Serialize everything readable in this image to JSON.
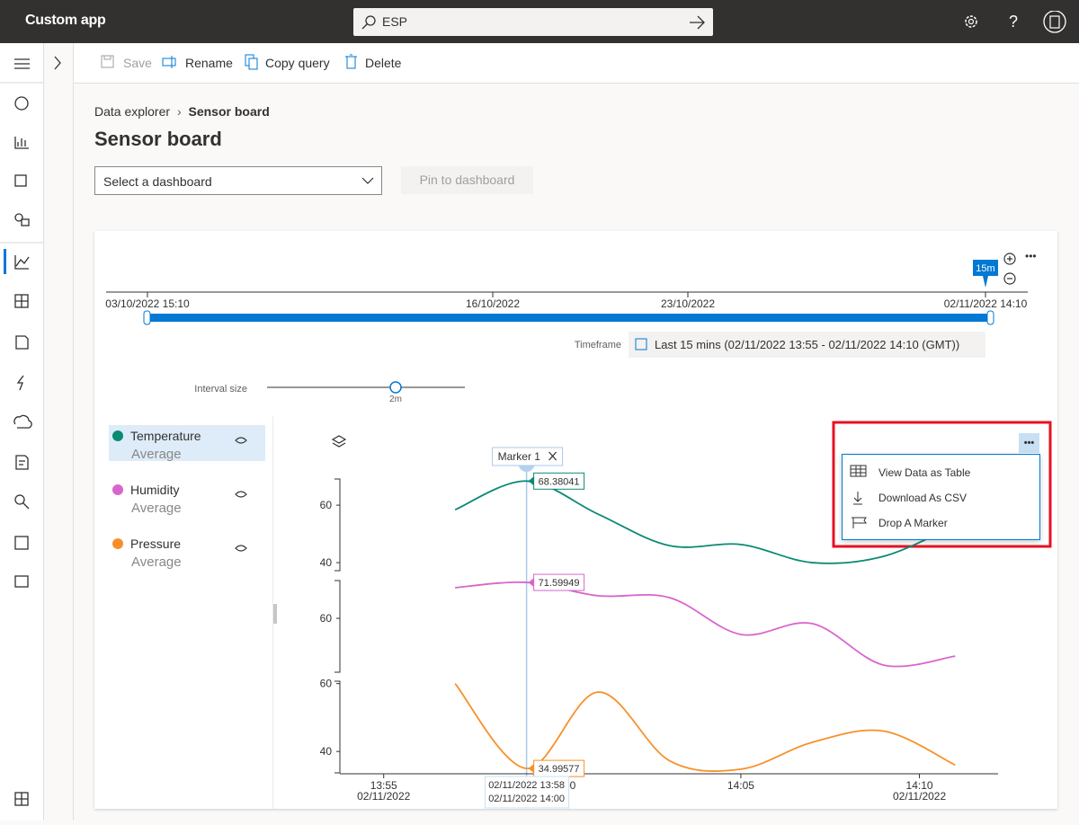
{
  "app": {
    "title": "Custom app",
    "search": "ESP"
  },
  "toolbar": [
    "Save",
    "Rename",
    "Copy query",
    "Delete"
  ],
  "breadcrumb": [
    "Data explorer",
    "Sensor board"
  ],
  "page_title": "Sensor board",
  "dashboard_select": "Select a dashboard",
  "pin_button": "Pin to dashboard",
  "timeline": {
    "labels": [
      "03/10/2022 15:10",
      "16/10/2022",
      "23/10/2022",
      "02/11/2022 14:10"
    ],
    "badge": "15m",
    "timeframe_label": "Timeframe",
    "timeframe": "Last 15 mins (02/11/2022 13:55 - 02/11/2022 14:10 (GMT))",
    "interval_label": "Interval size",
    "interval": "2m"
  },
  "menu": [
    "View Data as Table",
    "Download As CSV",
    "Drop A Marker"
  ],
  "chart_data": {
    "type": "line",
    "x": [
      "13:57",
      "13:59",
      "14:01",
      "14:03",
      "14:05",
      "14:07",
      "14:09",
      "14:11"
    ],
    "xlim": [
      "13:54",
      "14:12"
    ],
    "xticks": [
      "13:55",
      "14:00",
      "14:05",
      "14:10"
    ],
    "xtick_dates": [
      "02/11/2022",
      null,
      null,
      "02/11/2022"
    ],
    "series": [
      {
        "name": "Temperature",
        "aggregation": "Average",
        "color": "#0b8a74",
        "values": [
          58.4,
          68.38041,
          56.9,
          45.9,
          46.3,
          40,
          42.2,
          53
        ],
        "ylim": [
          37.2,
          69.1
        ],
        "yticks": [
          40,
          60
        ]
      },
      {
        "name": "Humidity",
        "aggregation": "Average",
        "color": "#d865cc",
        "values": [
          69.9,
          71.59949,
          67.3,
          66.7,
          54.8,
          58.3,
          44.9,
          47.8
        ],
        "ylim": [
          42.6,
          72.2
        ],
        "yticks": [
          60
        ]
      },
      {
        "name": "Pressure",
        "aggregation": "Average",
        "color": "#f7902a",
        "values": [
          60,
          34.99577,
          57.5,
          37.3,
          34.8,
          42.7,
          46,
          36
        ],
        "ylim": [
          33.7,
          60.7
        ],
        "yticks": [
          40,
          60
        ]
      }
    ],
    "marker": {
      "label": "Marker 1",
      "x": "13:59",
      "range": [
        "02/11/2022 13:58",
        "02/11/2022 14:00"
      ]
    }
  }
}
